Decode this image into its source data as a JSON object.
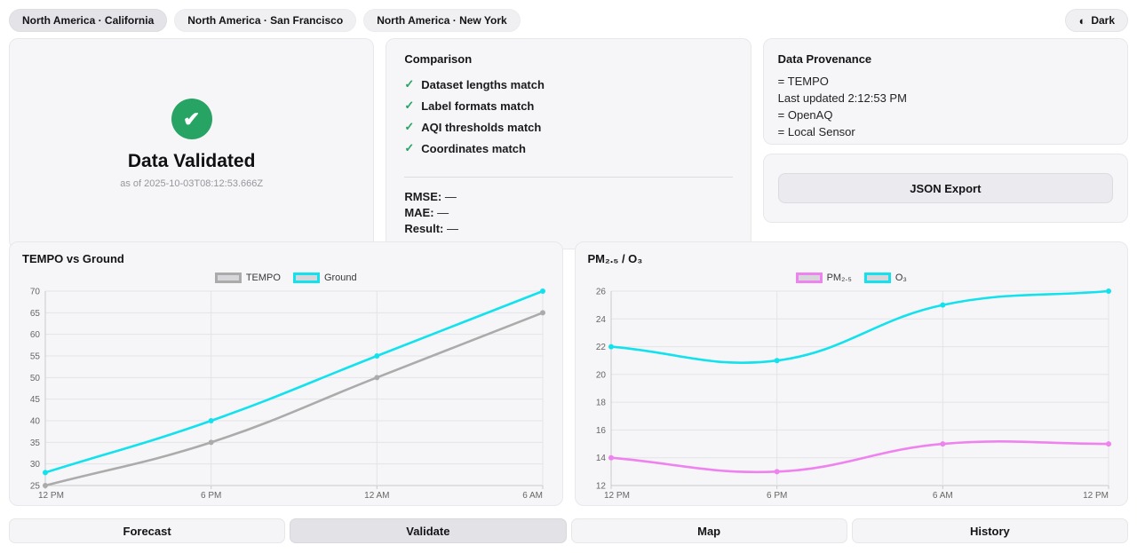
{
  "header": {
    "tabs": [
      {
        "label": "North America · California",
        "active": true
      },
      {
        "label": "North America · San Francisco",
        "active": false
      },
      {
        "label": "North America · New York",
        "active": false
      }
    ],
    "theme_toggle": {
      "icon": "half-circle-icon",
      "label": "Dark"
    }
  },
  "validated_card": {
    "icon": "check-circle-icon",
    "icon_color": "#27a463",
    "title": "Data Validated",
    "subtitle": "as of 2025-10-03T08:12:53.666Z"
  },
  "comparison_card": {
    "title": "Comparison",
    "check_color": "#27a463",
    "checks": [
      "Dataset lengths match",
      "Label formats match",
      "AQI thresholds match",
      "Coordinates match"
    ],
    "metrics": [
      {
        "label": "RMSE:",
        "value": "—"
      },
      {
        "label": "MAE:",
        "value": "—"
      },
      {
        "label": "Result:",
        "value": "—"
      }
    ]
  },
  "provenance_card": {
    "title": "Data Provenance",
    "lines": [
      "= TEMPO",
      "Last updated 2:12:53 PM",
      "= OpenAQ",
      "= Local Sensor"
    ]
  },
  "export_card": {
    "button_label": "JSON Export"
  },
  "chart_data": [
    {
      "type": "line",
      "title": "TEMPO vs Ground",
      "categories": [
        "12 PM",
        "6 PM",
        "12 AM",
        "6 AM"
      ],
      "series": [
        {
          "name": "TEMPO",
          "color": "#ababab",
          "values": [
            25,
            35,
            50,
            65
          ]
        },
        {
          "name": "Ground",
          "color": "#12e1ee",
          "values": [
            28,
            40,
            55,
            70
          ]
        }
      ],
      "ylim": [
        25,
        70
      ],
      "ytick_step": 5,
      "grid": true,
      "legend_position": "top",
      "tension": 0.4
    },
    {
      "type": "line",
      "title": "PM₂.₅ / O₃",
      "categories": [
        "12 PM",
        "6 PM",
        "6 AM",
        "12 PM"
      ],
      "series": [
        {
          "name": "PM₂.₅",
          "color": "#ee82ee",
          "values": [
            14,
            13,
            15,
            15
          ]
        },
        {
          "name": "O₃",
          "color": "#12e1ee",
          "values": [
            22,
            21,
            25,
            26
          ]
        }
      ],
      "ylim": [
        12,
        26
      ],
      "ytick_step": 2,
      "grid": true,
      "legend_position": "top",
      "tension": 0.4
    }
  ],
  "footer": {
    "buttons": [
      {
        "label": "Forecast",
        "active": false
      },
      {
        "label": "Validate",
        "active": true
      },
      {
        "label": "Map",
        "active": false
      },
      {
        "label": "History",
        "active": false
      }
    ]
  }
}
